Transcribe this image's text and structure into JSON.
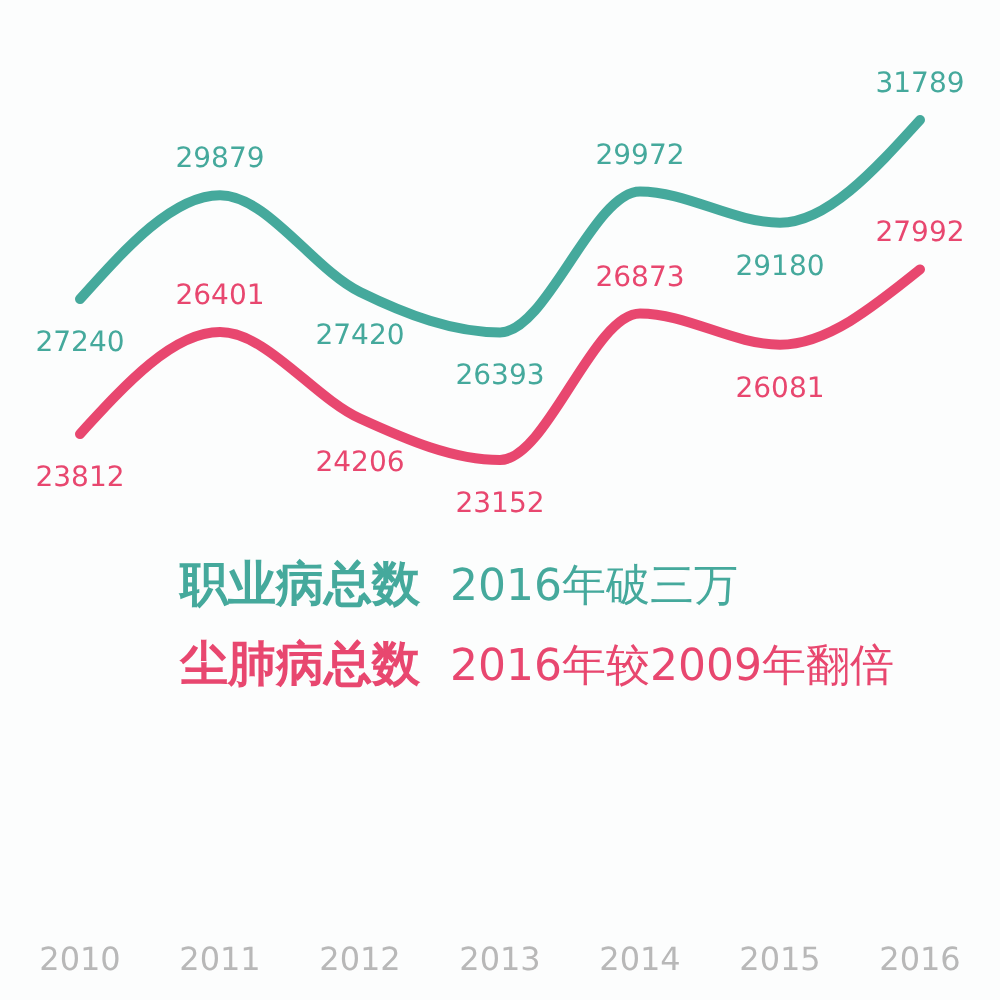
{
  "chart_data": {
    "type": "line",
    "categories": [
      "2010",
      "2011",
      "2012",
      "2013",
      "2014",
      "2015",
      "2016"
    ],
    "series": [
      {
        "name": "职业病总数",
        "color": "#45a99c",
        "values": [
          27240,
          29879,
          27420,
          26393,
          29972,
          29180,
          31789
        ]
      },
      {
        "name": "尘肺病总数",
        "color": "#e8476f",
        "values": [
          23812,
          26401,
          24206,
          23152,
          26873,
          26081,
          27992
        ]
      }
    ],
    "annotations": [
      "2016年破三万",
      "2016年较2009年翻倍"
    ],
    "data_labels": true,
    "legend": "bottom",
    "grid": false
  }
}
